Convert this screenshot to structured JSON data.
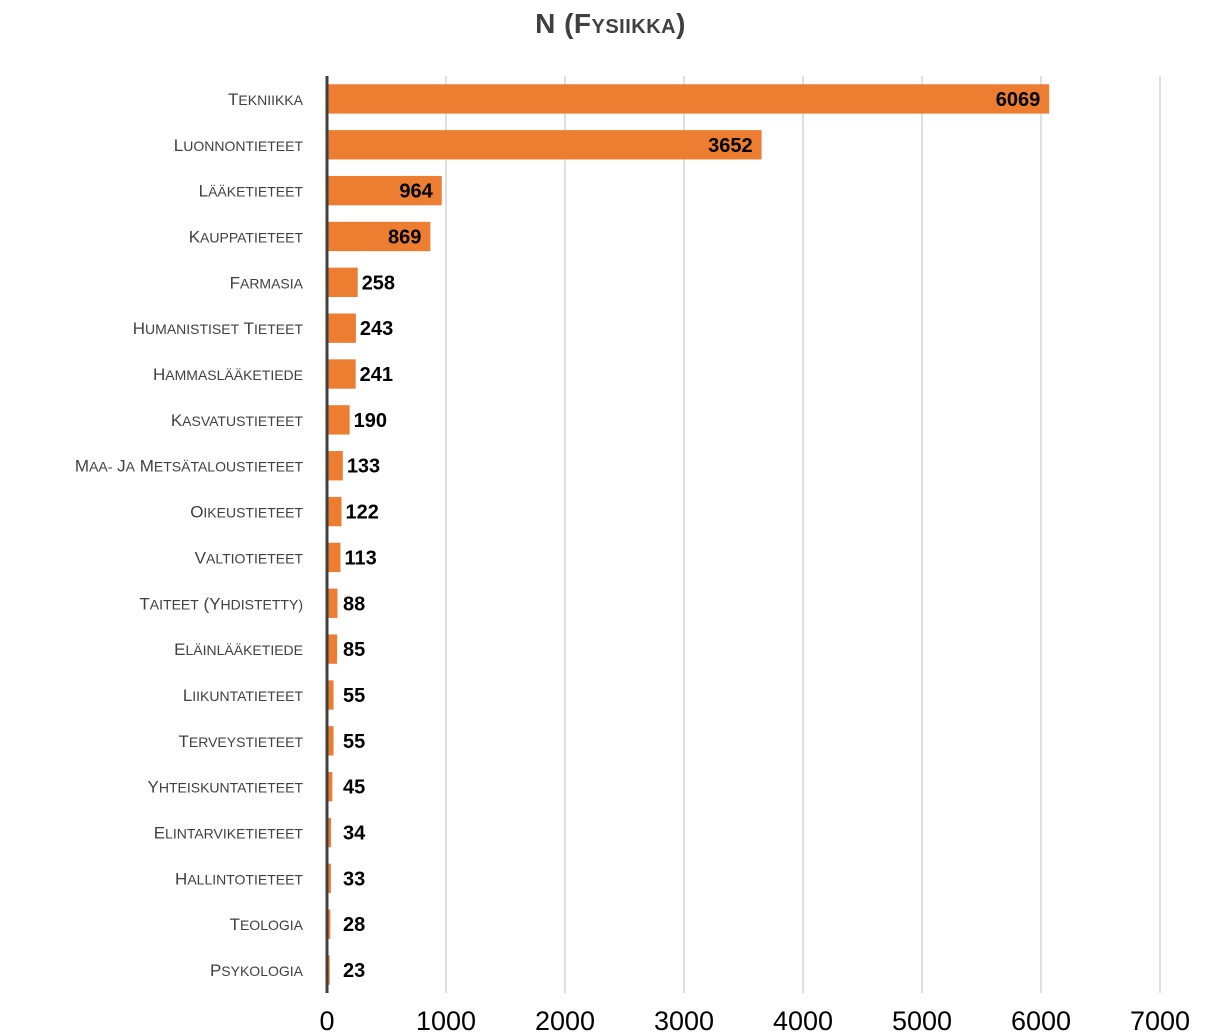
{
  "chart_data": {
    "type": "bar",
    "orientation": "horizontal",
    "title": "N (Fysiikka)",
    "categories": [
      "Tekniikka",
      "Luonnontieteet",
      "Lääketieteet",
      "Kauppatieteet",
      "Farmasia",
      "Humanistiset tieteet",
      "Hammaslääketiede",
      "Kasvatustieteet",
      "Maa- ja metsätaloustieteet",
      "Oikeustieteet",
      "Valtiotieteet",
      "Taiteet (yhdistetty)",
      "Eläinlääketiede",
      "Liikuntatieteet",
      "Terveystieteet",
      "Yhteiskuntatieteet",
      "Elintarviketieteet",
      "Hallintotieteet",
      "Teologia",
      "Psykologia"
    ],
    "values": [
      6069,
      3652,
      964,
      869,
      258,
      243,
      241,
      190,
      133,
      122,
      113,
      88,
      85,
      55,
      55,
      45,
      34,
      33,
      28,
      23
    ],
    "xlim": [
      0,
      7000
    ],
    "xticks": [
      0,
      1000,
      2000,
      3000,
      4000,
      5000,
      6000,
      7000
    ],
    "xlabel": "",
    "ylabel": "",
    "grid": "vertical",
    "legend": "none",
    "colors": {
      "bar": "#ED7D31",
      "axis": "#404040",
      "grid": "#BFBFBF",
      "label_text": "#000000",
      "category_text": "#404040",
      "tick_text": "#000000",
      "title_text": "#404040"
    }
  }
}
